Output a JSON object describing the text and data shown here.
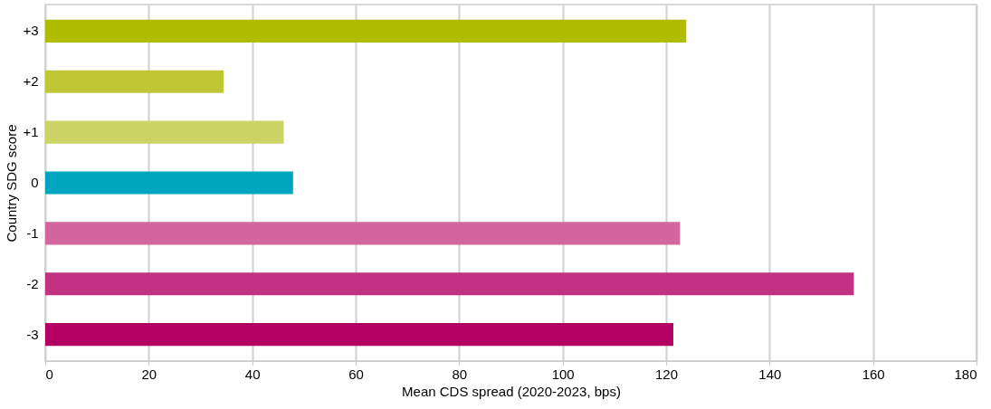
{
  "chart_data": {
    "type": "bar",
    "orientation": "horizontal",
    "xlabel": "Mean CDS spread (2020-2023, bps)",
    "ylabel": "Country SDG score",
    "categories": [
      "+3",
      "+2",
      "+1",
      "0",
      "-1",
      "-2",
      "-3"
    ],
    "values": [
      123.9,
      34.5,
      46.1,
      47.9,
      122.7,
      156.3,
      121.4
    ],
    "colors": [
      "#b0bc00",
      "#bfc735",
      "#cdd466",
      "#00a5c0",
      "#d4669f",
      "#c33282",
      "#b30062"
    ],
    "xlim": [
      0,
      180
    ],
    "xticks": [
      0,
      20,
      40,
      60,
      80,
      100,
      120,
      140,
      160,
      180
    ],
    "grid": "x"
  }
}
